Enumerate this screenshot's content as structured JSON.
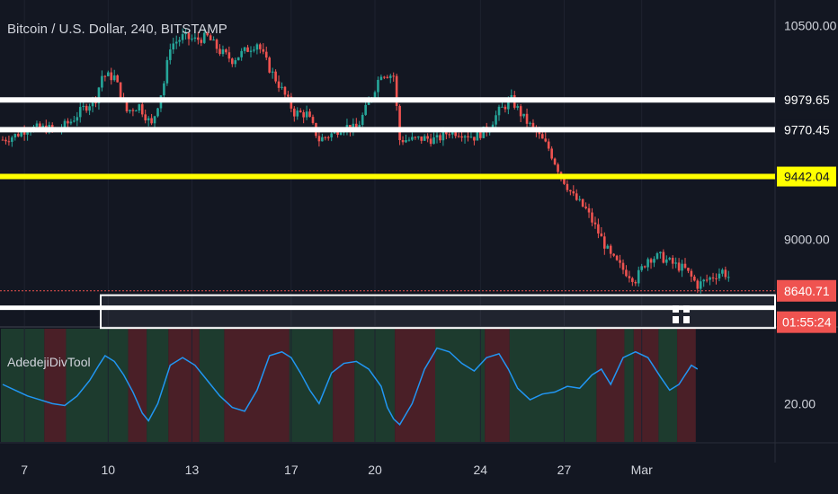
{
  "header": {
    "title": "Bitcoin / U.S. Dollar, 240, BITSTAMP"
  },
  "indicator": {
    "name": "AdedejiDivTool",
    "axis_label": "20.00"
  },
  "chart_data": {
    "type": "candlestick",
    "title": "Bitcoin / U.S. Dollar, 240, BITSTAMP",
    "ylim": [
      8400,
      10680
    ],
    "y_ticks": [
      "10500.00",
      "9000.00"
    ],
    "x_ticks": [
      "7",
      "10",
      "13",
      "17",
      "20",
      "24",
      "27",
      "Mar"
    ],
    "x_tick_index": [
      7,
      34,
      61,
      93,
      120,
      154,
      181,
      206
    ],
    "price_series": [
      [
        0,
        9700
      ],
      [
        4,
        9730
      ],
      [
        8,
        9780
      ],
      [
        14,
        9780
      ],
      [
        18,
        9770
      ],
      [
        22,
        9830
      ],
      [
        26,
        9920
      ],
      [
        30,
        9990
      ],
      [
        32,
        10150
      ],
      [
        36,
        10140
      ],
      [
        40,
        9900
      ],
      [
        44,
        9940
      ],
      [
        48,
        9800
      ],
      [
        52,
        10100
      ],
      [
        54,
        10360
      ],
      [
        58,
        10420
      ],
      [
        62,
        10400
      ],
      [
        66,
        10420
      ],
      [
        70,
        10320
      ],
      [
        74,
        10260
      ],
      [
        78,
        10320
      ],
      [
        82,
        10380
      ],
      [
        86,
        10200
      ],
      [
        90,
        10050
      ],
      [
        94,
        9890
      ],
      [
        98,
        9880
      ],
      [
        102,
        9700
      ],
      [
        106,
        9740
      ],
      [
        110,
        9800
      ],
      [
        114,
        9770
      ],
      [
        118,
        9960
      ],
      [
        122,
        10170
      ],
      [
        126,
        10150
      ],
      [
        128,
        9700
      ],
      [
        132,
        9700
      ],
      [
        136,
        9710
      ],
      [
        140,
        9700
      ],
      [
        144,
        9760
      ],
      [
        148,
        9750
      ],
      [
        152,
        9720
      ],
      [
        156,
        9770
      ],
      [
        160,
        9900
      ],
      [
        164,
        9980
      ],
      [
        168,
        9850
      ],
      [
        172,
        9750
      ],
      [
        176,
        9640
      ],
      [
        180,
        9450
      ],
      [
        184,
        9300
      ],
      [
        188,
        9210
      ],
      [
        192,
        9050
      ],
      [
        196,
        8880
      ],
      [
        200,
        8790
      ],
      [
        204,
        8720
      ],
      [
        208,
        8870
      ],
      [
        212,
        8880
      ],
      [
        216,
        8830
      ],
      [
        220,
        8790
      ],
      [
        224,
        8680
      ],
      [
        228,
        8730
      ],
      [
        232,
        8780
      ],
      [
        234,
        8740
      ]
    ],
    "levels": [
      {
        "label": "9979.65",
        "value": 9979.65,
        "color": "#ffffff"
      },
      {
        "label": "9770.45",
        "value": 9770.45,
        "color": "#ffffff"
      },
      {
        "label": "9442.04",
        "value": 9442.04,
        "color": "#ffff00"
      }
    ],
    "current_price": {
      "label": "8640.71",
      "value": 8640.71,
      "color": "#ef5350",
      "countdown": "01:55:24"
    },
    "zone": {
      "top": 8610,
      "bottom": 8380
    },
    "indicator_series": [
      [
        0,
        30
      ],
      [
        4,
        27
      ],
      [
        8,
        24
      ],
      [
        12,
        22
      ],
      [
        16,
        20
      ],
      [
        20,
        19
      ],
      [
        24,
        24
      ],
      [
        28,
        32
      ],
      [
        31,
        40
      ],
      [
        33,
        45
      ],
      [
        36,
        42
      ],
      [
        39,
        35
      ],
      [
        42,
        26
      ],
      [
        45,
        15
      ],
      [
        47,
        11
      ],
      [
        50,
        20
      ],
      [
        54,
        40
      ],
      [
        58,
        44
      ],
      [
        62,
        40
      ],
      [
        66,
        32
      ],
      [
        70,
        24
      ],
      [
        74,
        18
      ],
      [
        78,
        16
      ],
      [
        82,
        27
      ],
      [
        86,
        45
      ],
      [
        90,
        47
      ],
      [
        93,
        44
      ],
      [
        96,
        36
      ],
      [
        99,
        27
      ],
      [
        102,
        20
      ],
      [
        106,
        36
      ],
      [
        110,
        41
      ],
      [
        114,
        42
      ],
      [
        118,
        38
      ],
      [
        122,
        29
      ],
      [
        124,
        18
      ],
      [
        126,
        12
      ],
      [
        128,
        9
      ],
      [
        132,
        20
      ],
      [
        136,
        38
      ],
      [
        140,
        49
      ],
      [
        144,
        47
      ],
      [
        148,
        41
      ],
      [
        152,
        37
      ],
      [
        156,
        44
      ],
      [
        160,
        46
      ],
      [
        163,
        38
      ],
      [
        166,
        28
      ],
      [
        170,
        22
      ],
      [
        174,
        25
      ],
      [
        178,
        26
      ],
      [
        182,
        29
      ],
      [
        186,
        28
      ],
      [
        190,
        35
      ],
      [
        193,
        38
      ],
      [
        196,
        30
      ],
      [
        200,
        44
      ],
      [
        204,
        47
      ],
      [
        208,
        44
      ],
      [
        212,
        34
      ],
      [
        215,
        27
      ],
      [
        218,
        30
      ],
      [
        222,
        40
      ],
      [
        224,
        38
      ]
    ],
    "indicator_ylim": [
      0,
      60
    ],
    "indicator_ticks": [
      "20.00"
    ],
    "indicator_bands": [
      {
        "from": 0,
        "to": 14,
        "color": "green"
      },
      {
        "from": 14,
        "to": 21,
        "color": "red"
      },
      {
        "from": 21,
        "to": 41,
        "color": "green"
      },
      {
        "from": 41,
        "to": 47,
        "color": "red"
      },
      {
        "from": 47,
        "to": 54,
        "color": "green"
      },
      {
        "from": 54,
        "to": 64,
        "color": "red"
      },
      {
        "from": 64,
        "to": 72,
        "color": "green"
      },
      {
        "from": 72,
        "to": 93,
        "color": "red"
      },
      {
        "from": 93,
        "to": 107,
        "color": "green"
      },
      {
        "from": 107,
        "to": 114,
        "color": "red"
      },
      {
        "from": 114,
        "to": 127,
        "color": "green"
      },
      {
        "from": 127,
        "to": 140,
        "color": "red"
      },
      {
        "from": 140,
        "to": 156,
        "color": "green"
      },
      {
        "from": 156,
        "to": 164,
        "color": "red"
      },
      {
        "from": 164,
        "to": 192,
        "color": "green"
      },
      {
        "from": 192,
        "to": 201,
        "color": "red"
      },
      {
        "from": 201,
        "to": 204,
        "color": "green"
      },
      {
        "from": 204,
        "to": 212,
        "color": "red"
      },
      {
        "from": 212,
        "to": 218,
        "color": "green"
      },
      {
        "from": 218,
        "to": 224,
        "color": "red"
      }
    ],
    "colors": {
      "up": "#26a69a",
      "down": "#ef5350",
      "indicator_line": "#2196f3"
    }
  }
}
